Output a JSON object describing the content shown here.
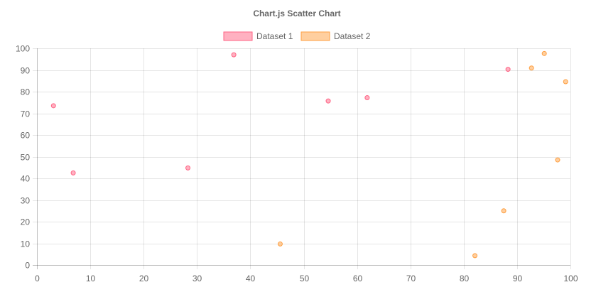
{
  "chart_data": {
    "type": "scatter",
    "title": "Chart.js Scatter Chart",
    "xlabel": "",
    "ylabel": "",
    "xlim": [
      0,
      100
    ],
    "ylim": [
      0,
      100
    ],
    "x_ticks": [
      "0",
      "10",
      "20",
      "30",
      "40",
      "50",
      "60",
      "70",
      "80",
      "90",
      "100"
    ],
    "y_ticks": [
      "0",
      "10",
      "20",
      "30",
      "40",
      "50",
      "60",
      "70",
      "80",
      "90",
      "100"
    ],
    "grid": true,
    "legend_position": "top-center",
    "series": [
      {
        "name": "Dataset 1",
        "border_color": "#ff6384",
        "fill_color": "rgba(255,99,132,0.5)",
        "points": [
          {
            "x": 3.1,
            "y": 73.5
          },
          {
            "x": 6.8,
            "y": 42.5
          },
          {
            "x": 28.3,
            "y": 44.8
          },
          {
            "x": 36.9,
            "y": 97.0
          },
          {
            "x": 54.6,
            "y": 75.7
          },
          {
            "x": 61.9,
            "y": 77.2
          },
          {
            "x": 88.3,
            "y": 90.3
          }
        ]
      },
      {
        "name": "Dataset 2",
        "border_color": "#ff9f40",
        "fill_color": "rgba(255,159,64,0.5)",
        "points": [
          {
            "x": 45.6,
            "y": 9.7
          },
          {
            "x": 82.1,
            "y": 4.3
          },
          {
            "x": 87.5,
            "y": 25.0
          },
          {
            "x": 92.7,
            "y": 90.9
          },
          {
            "x": 95.1,
            "y": 97.6
          },
          {
            "x": 97.6,
            "y": 48.5
          },
          {
            "x": 99.1,
            "y": 84.6
          }
        ]
      }
    ]
  }
}
